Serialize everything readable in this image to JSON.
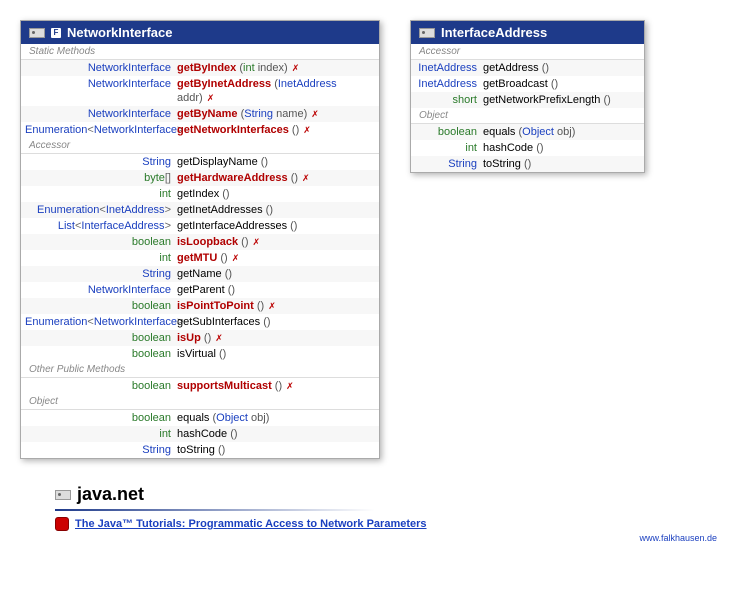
{
  "layout": {
    "leftClassWidth": 360,
    "rightClassWidth": 235,
    "leftReturnColWidth": 152,
    "rightReturnColWidth": 68
  },
  "colors": {
    "headerBg": "#1e3a8a",
    "typeLink": "#1a3fbf",
    "keyword": "#2a7a2a",
    "redMethod": "#b00000",
    "sectionLabel": "#888888",
    "altRow": "#f7f7f7",
    "shadow": "rgba(0,0,0,0.3)"
  },
  "networkInterface": {
    "title": "NetworkInterface",
    "badge": "F",
    "sections": [
      {
        "label": "Static Methods",
        "methods": [
          {
            "ret": [
              {
                "t": "NetworkInterface",
                "link": true
              }
            ],
            "name": "getByIndex",
            "red": true,
            "params": [
              {
                "kw": "int"
              },
              {
                "p": " index"
              }
            ],
            "throws": true
          },
          {
            "ret": [
              {
                "t": "NetworkInterface",
                "link": true
              }
            ],
            "name": "getByInetAddress",
            "red": true,
            "params": [
              {
                "t": "InetAddress",
                "link": true
              },
              {
                "p": " addr"
              }
            ],
            "throws": true
          },
          {
            "ret": [
              {
                "t": "NetworkInterface",
                "link": true
              }
            ],
            "name": "getByName",
            "red": true,
            "params": [
              {
                "t": "String",
                "link": true
              },
              {
                "p": " name"
              }
            ],
            "throws": true
          },
          {
            "ret": [
              {
                "t": "Enumeration",
                "link": true
              },
              {
                "p": "<"
              },
              {
                "t": "NetworkInterface",
                "link": true
              },
              {
                "p": ">"
              }
            ],
            "name": "getNetworkInterfaces",
            "red": true,
            "params": [],
            "throws": true
          }
        ]
      },
      {
        "label": "Accessor",
        "methods": [
          {
            "ret": [
              {
                "t": "String",
                "link": true
              }
            ],
            "name": "getDisplayName",
            "params": []
          },
          {
            "ret": [
              {
                "kw": "byte"
              },
              {
                "p": "[]"
              }
            ],
            "name": "getHardwareAddress",
            "red": true,
            "params": [],
            "throws": true
          },
          {
            "ret": [
              {
                "kw": "int"
              }
            ],
            "name": "getIndex",
            "params": []
          },
          {
            "ret": [
              {
                "t": "Enumeration",
                "link": true
              },
              {
                "p": "<"
              },
              {
                "t": "InetAddress",
                "link": true
              },
              {
                "p": ">"
              }
            ],
            "name": "getInetAddresses",
            "params": []
          },
          {
            "ret": [
              {
                "t": "List",
                "link": true
              },
              {
                "p": "<"
              },
              {
                "t": "InterfaceAddress",
                "link": true
              },
              {
                "p": ">"
              }
            ],
            "name": "getInterfaceAddresses",
            "params": []
          },
          {
            "ret": [
              {
                "kw": "boolean"
              }
            ],
            "name": "isLoopback",
            "red": true,
            "params": [],
            "throws": true
          },
          {
            "ret": [
              {
                "kw": "int"
              }
            ],
            "name": "getMTU",
            "red": true,
            "params": [],
            "throws": true
          },
          {
            "ret": [
              {
                "t": "String",
                "link": true
              }
            ],
            "name": "getName",
            "params": []
          },
          {
            "ret": [
              {
                "t": "NetworkInterface",
                "link": true
              }
            ],
            "name": "getParent",
            "params": []
          },
          {
            "ret": [
              {
                "kw": "boolean"
              }
            ],
            "name": "isPointToPoint",
            "red": true,
            "params": [],
            "throws": true
          },
          {
            "ret": [
              {
                "t": "Enumeration",
                "link": true
              },
              {
                "p": "<"
              },
              {
                "t": "NetworkInterface",
                "link": true
              },
              {
                "p": ">"
              }
            ],
            "name": "getSubInterfaces",
            "params": []
          },
          {
            "ret": [
              {
                "kw": "boolean"
              }
            ],
            "name": "isUp",
            "red": true,
            "params": [],
            "throws": true
          },
          {
            "ret": [
              {
                "kw": "boolean"
              }
            ],
            "name": "isVirtual",
            "params": []
          }
        ]
      },
      {
        "label": "Other Public Methods",
        "methods": [
          {
            "ret": [
              {
                "kw": "boolean"
              }
            ],
            "name": "supportsMulticast",
            "red": true,
            "params": [],
            "throws": true
          }
        ]
      },
      {
        "label": "Object",
        "methods": [
          {
            "ret": [
              {
                "kw": "boolean"
              }
            ],
            "name": "equals",
            "params": [
              {
                "t": "Object",
                "link": true
              },
              {
                "p": " obj"
              }
            ]
          },
          {
            "ret": [
              {
                "kw": "int"
              }
            ],
            "name": "hashCode",
            "params": []
          },
          {
            "ret": [
              {
                "t": "String",
                "link": true
              }
            ],
            "name": "toString",
            "params": []
          }
        ]
      }
    ]
  },
  "interfaceAddress": {
    "title": "InterfaceAddress",
    "sections": [
      {
        "label": "Accessor",
        "methods": [
          {
            "ret": [
              {
                "t": "InetAddress",
                "link": true
              }
            ],
            "name": "getAddress",
            "params": []
          },
          {
            "ret": [
              {
                "t": "InetAddress",
                "link": true
              }
            ],
            "name": "getBroadcast",
            "params": []
          },
          {
            "ret": [
              {
                "kw": "short"
              }
            ],
            "name": "getNetworkPrefixLength",
            "params": []
          }
        ]
      },
      {
        "label": "Object",
        "methods": [
          {
            "ret": [
              {
                "kw": "boolean"
              }
            ],
            "name": "equals",
            "params": [
              {
                "t": "Object",
                "link": true
              },
              {
                "p": " obj"
              }
            ]
          },
          {
            "ret": [
              {
                "kw": "int"
              }
            ],
            "name": "hashCode",
            "params": []
          },
          {
            "ret": [
              {
                "t": "String",
                "link": true
              }
            ],
            "name": "toString",
            "params": []
          }
        ]
      }
    ]
  },
  "footer": {
    "package": "java.net",
    "tutorialText": "The Java™ Tutorials: Programmatic Access to Network Parameters",
    "credit": "www.falkhausen.de"
  }
}
